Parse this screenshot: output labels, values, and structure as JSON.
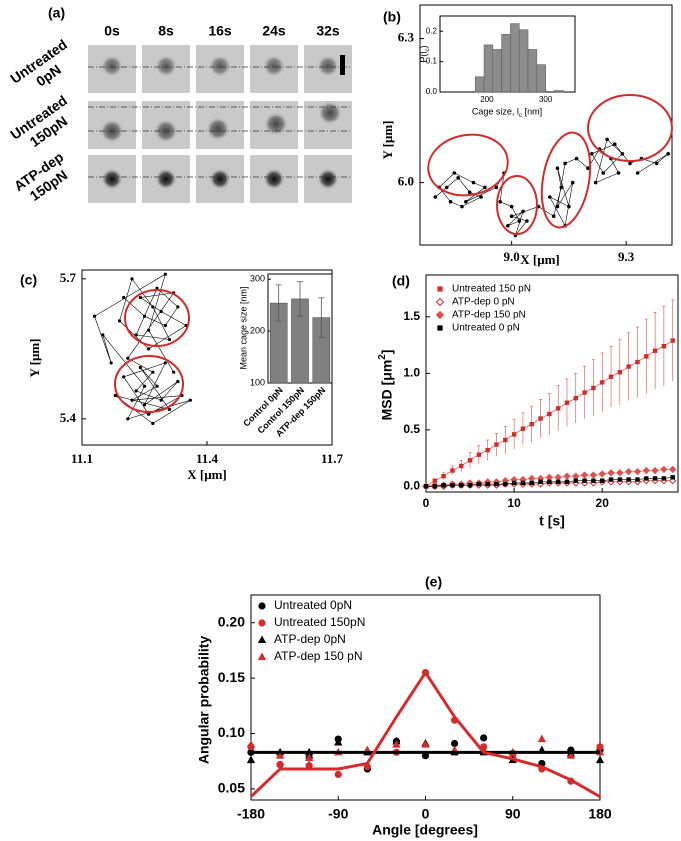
{
  "image_grid": {
    "label": "(a)",
    "columns": [
      "0s",
      "8s",
      "16s",
      "24s",
      "32s"
    ],
    "rows": [
      [
        "Untreated",
        "0pN"
      ],
      [
        "Untreated",
        "150pN"
      ],
      [
        "ATP-dep",
        "150pN"
      ]
    ]
  },
  "chart_data": [
    {
      "type": "scatter",
      "label": "(b)",
      "x_label": "X [μm]",
      "y_label": "Y [μm]",
      "connected": true,
      "color": "#000000",
      "x": [
        8.8,
        8.83,
        8.86,
        8.89,
        8.92,
        8.87,
        8.84,
        8.81,
        8.85,
        8.9,
        8.93,
        8.88,
        8.96,
        8.98,
        8.97,
        9.0,
        9.02,
        8.99,
        9.03,
        9.01,
        9.04,
        9.0,
        9.07,
        9.11,
        9.13,
        9.12,
        9.15,
        9.1,
        9.14,
        9.16,
        9.12,
        9.14,
        9.17,
        9.2,
        9.23,
        9.26,
        9.28,
        9.22,
        9.25,
        9.29,
        9.24,
        9.21,
        9.27,
        9.31,
        9.34,
        9.38,
        9.41,
        9.33
      ],
      "y": [
        5.97,
        5.99,
        6.01,
        5.98,
        5.97,
        5.95,
        5.96,
        5.99,
        6.02,
        6.0,
        5.99,
        5.96,
        5.99,
        6.02,
        5.96,
        5.95,
        5.92,
        5.91,
        5.94,
        5.89,
        5.92,
        5.93,
        5.95,
        5.93,
        5.99,
        6.03,
        5.95,
        5.97,
        5.91,
        6.0,
        5.95,
        6.04,
        6.05,
        6.03,
        6.07,
        6.05,
        6.02,
        6.0,
        6.09,
        6.06,
        6.02,
        6.06,
        6.08,
        6.04,
        6.05,
        6.04,
        6.06,
        6.02
      ],
      "xlim": [
        8.76,
        9.42
      ],
      "ylim": [
        5.87,
        6.37
      ],
      "xticks": [
        {
          "value": 9,
          "label": "9.0"
        },
        9.3
      ],
      "yticks": [
        {
          "value": 6,
          "label": "6.0"
        },
        6.3
      ]
    },
    {
      "type": "histogram",
      "x_label": "Cage size, l_c [nm]",
      "y_label": "P(l_c)",
      "color": "#8c8c8c",
      "bins": [
        180,
        195,
        210,
        225,
        240,
        255,
        270,
        285,
        300,
        315,
        330
      ],
      "values": [
        0.05,
        0.155,
        0.14,
        0.19,
        0.225,
        0.205,
        0.14,
        0.09,
        0,
        0.005
      ],
      "xlim": [
        120,
        350
      ],
      "ylim": [
        0,
        0.25
      ],
      "xticks": [
        200,
        300
      ],
      "yticks": [
        {
          "value": 0,
          "label": "0.0"
        },
        0.1,
        0.2
      ]
    },
    {
      "type": "scatter",
      "label": "(c)",
      "x_label": "X [μm]",
      "y_label": "Y [μm]",
      "connected": true,
      "color": "#000000",
      "x": [
        11.2,
        11.25,
        11.3,
        11.33,
        11.28,
        11.23,
        11.31,
        11.27,
        11.22,
        11.19,
        11.26,
        11.35,
        11.29,
        11.24,
        11.32,
        11.21,
        11.27,
        11.23,
        11.29,
        11.33,
        11.25,
        11.3,
        11.2,
        11.26,
        11.34,
        11.22,
        11.28,
        11.24,
        11.31,
        11.18,
        11.27,
        11.36,
        11.21,
        11.25,
        11.15,
        11.17,
        11.13,
        11.3,
        11.26,
        11.32
      ],
      "y": [
        5.66,
        5.62,
        5.6,
        5.64,
        5.68,
        5.58,
        5.57,
        5.64,
        5.7,
        5.61,
        5.55,
        5.6,
        5.63,
        5.66,
        5.67,
        5.53,
        5.5,
        5.46,
        5.44,
        5.48,
        5.43,
        5.52,
        5.49,
        5.41,
        5.45,
        5.44,
        5.47,
        5.51,
        5.42,
        5.45,
        5.39,
        5.44,
        5.4,
        5.47,
        5.58,
        5.52,
        5.62,
        5.71,
        5.59,
        5.5
      ],
      "xlim": [
        11.1,
        11.7
      ],
      "ylim": [
        5.344,
        5.719
      ],
      "xticks": [
        11.1,
        11.4,
        11.7
      ],
      "yticks": [
        5.4,
        5.7
      ]
    },
    {
      "type": "bar",
      "y_label": "Mean cage size [nm]",
      "color": "#808080",
      "categories": [
        "Control 0pN",
        "Control 150pN",
        "ATP-dep 150pN"
      ],
      "values": [
        254,
        262,
        226
      ],
      "errors": [
        35,
        33,
        38
      ],
      "ylim": [
        100,
        310
      ],
      "yticks": [
        100,
        200,
        300
      ]
    },
    {
      "type": "line",
      "label": "(d)",
      "x_label": "t [s]",
      "y_label": "MSD [μm^2]",
      "legend": "upper left",
      "x": [
        0,
        1,
        2,
        3,
        4,
        5,
        6,
        7,
        8,
        9,
        10,
        11,
        12,
        13,
        14,
        15,
        16,
        17,
        18,
        19,
        20,
        21,
        22,
        23,
        24,
        25,
        26,
        27,
        28
      ],
      "series": [
        {
          "name": "Untreated 150 pN",
          "color": "#d42a2a",
          "marker": "square",
          "values": [
            0,
            0.05,
            0.09,
            0.14,
            0.18,
            0.23,
            0.28,
            0.32,
            0.37,
            0.41,
            0.46,
            0.51,
            0.55,
            0.6,
            0.64,
            0.69,
            0.74,
            0.78,
            0.83,
            0.87,
            0.92,
            0.97,
            1.01,
            1.06,
            1.1,
            1.15,
            1.2,
            1.24,
            1.29
          ],
          "errors": [
            0,
            0.01,
            0.03,
            0.04,
            0.05,
            0.07,
            0.08,
            0.09,
            0.1,
            0.12,
            0.13,
            0.14,
            0.16,
            0.17,
            0.18,
            0.2,
            0.21,
            0.22,
            0.23,
            0.25,
            0.26,
            0.27,
            0.29,
            0.3,
            0.31,
            0.33,
            0.34,
            0.35,
            0.36
          ]
        },
        {
          "name": "ATP-dep 0 pN",
          "color": "#d42a2a",
          "marker": "diamond-open",
          "values": [
            0,
            0,
            0,
            0.01,
            0.01,
            0.01,
            0.01,
            0.01,
            0.01,
            0.02,
            0.02,
            0.02,
            0.02,
            0.02,
            0.03,
            0.03,
            0.03,
            0.03,
            0.03,
            0.03,
            0.04,
            0.04,
            0.04,
            0.04,
            0.04,
            0.05,
            0.05,
            0.05,
            0.05
          ]
        },
        {
          "name": "ATP-dep 150 pN",
          "color": "#e05050",
          "marker": "diamond",
          "values": [
            0,
            0.01,
            0.01,
            0.02,
            0.02,
            0.03,
            0.03,
            0.04,
            0.04,
            0.05,
            0.06,
            0.06,
            0.07,
            0.07,
            0.08,
            0.08,
            0.09,
            0.09,
            0.1,
            0.1,
            0.11,
            0.12,
            0.12,
            0.13,
            0.13,
            0.14,
            0.14,
            0.15,
            0.15
          ]
        },
        {
          "name": "Untreated 0 pN",
          "color": "#000000",
          "marker": "square",
          "values": [
            0,
            0,
            0.01,
            0.01,
            0.01,
            0.01,
            0.02,
            0.02,
            0.02,
            0.02,
            0.03,
            0.03,
            0.03,
            0.04,
            0.04,
            0.04,
            0.04,
            0.05,
            0.05,
            0.05,
            0.05,
            0.06,
            0.06,
            0.06,
            0.06,
            0.07,
            0.07,
            0.07,
            0.08
          ]
        }
      ],
      "xlim": [
        0,
        28.6
      ],
      "ylim": [
        -0.05,
        1.87
      ],
      "xticks": [
        0,
        10,
        20
      ],
      "yticks": [
        {
          "value": 0,
          "label": "0.0"
        },
        0.5,
        {
          "value": 1,
          "label": "1.0"
        },
        1.5
      ]
    },
    {
      "type": "scatter",
      "label": "(e)",
      "x_label": "Angle [degrees]",
      "y_label": "Angular probability",
      "legend": "upper left",
      "x": [
        -180,
        -150,
        -120,
        -90,
        -60,
        -30,
        0,
        30,
        60,
        90,
        120,
        150,
        180
      ],
      "series": [
        {
          "name": "Untreated 0pN",
          "color": "#000000",
          "marker": "circle",
          "values": [
            0.083,
            0.072,
            0.078,
            0.095,
            0.068,
            0.093,
            0.08,
            0.091,
            0.096,
            0.082,
            0.073,
            0.085,
            0.085
          ]
        },
        {
          "name": "Untreated 150pN",
          "color": "#d62b2b",
          "marker": "circle",
          "values": [
            0.088,
            0.072,
            0.071,
            0.063,
            0.07,
            0.083,
            0.155,
            0.112,
            0.088,
            0.078,
            0.068,
            0.057,
            0.088
          ]
        },
        {
          "name": "ATP-dep 0pN",
          "color": "#000000",
          "marker": "triangle",
          "values": [
            0.076,
            0.083,
            0.083,
            0.092,
            0.083,
            0.093,
            0.091,
            0.083,
            0.083,
            0.076,
            0.085,
            0.082,
            0.076
          ]
        },
        {
          "name": "ATP-dep 150 pN",
          "color": "#d62b2b",
          "marker": "triangle",
          "values": [
            0.09,
            0.08,
            0.078,
            0.083,
            0.085,
            0.09,
            0.09,
            0.085,
            0.085,
            0.083,
            0.095,
            0.08,
            0.083
          ]
        }
      ],
      "lines": [
        {
          "color": "#000000",
          "x": [
            -180,
            180
          ],
          "values": [
            0.083,
            0.083
          ]
        },
        {
          "color": "#d62b2b",
          "x": [
            -180,
            -150,
            -120,
            -90,
            -60,
            -30,
            0,
            30,
            60,
            90,
            120,
            150,
            180
          ],
          "values": [
            0.043,
            0.068,
            0.068,
            0.068,
            0.073,
            0.115,
            0.155,
            0.115,
            0.083,
            0.077,
            0.07,
            0.058,
            0.043
          ]
        }
      ],
      "xlim": [
        -180,
        180
      ],
      "ylim": [
        0.04,
        0.225
      ],
      "xticks": [
        -180,
        -90,
        0,
        90,
        180
      ],
      "yticks": [
        0.05,
        {
          "value": 0.1,
          "label": "0.10"
        },
        0.15,
        {
          "value": 0.2,
          "label": "0.20"
        }
      ]
    }
  ]
}
